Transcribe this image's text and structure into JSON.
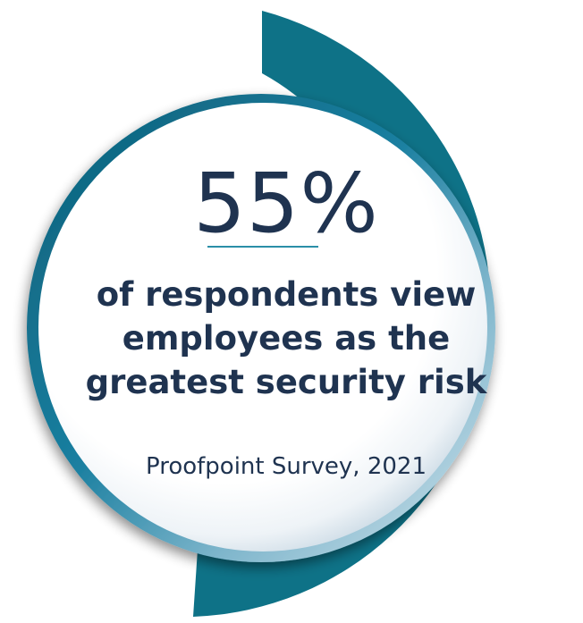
{
  "stat": {
    "value": "55%",
    "fraction": 0.55
  },
  "description": {
    "line1": "of respondents view",
    "line2": "employees as the",
    "line3": "greatest security risk"
  },
  "source": "Proofpoint Survey, 2021",
  "colors": {
    "ring": "#0e7287",
    "ring_light": "#1d8ca3",
    "text": "#1f3350",
    "divider": "#2b8fa8"
  }
}
